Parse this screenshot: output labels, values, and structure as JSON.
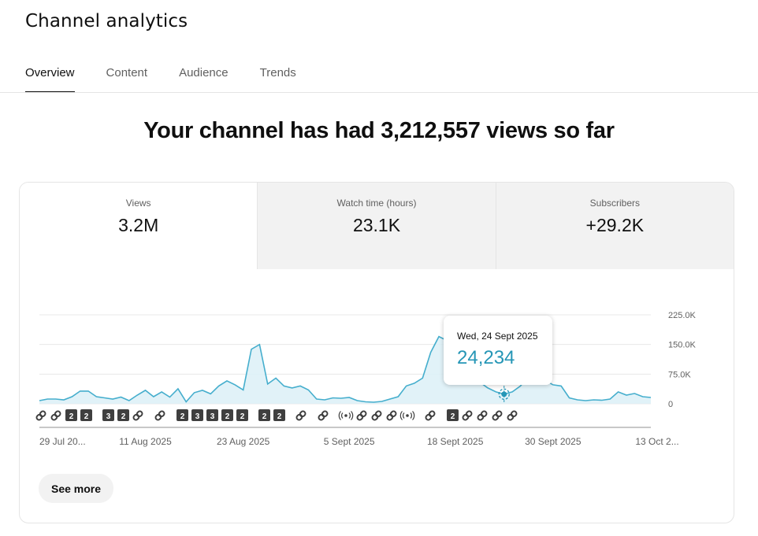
{
  "header": {
    "title": "Channel analytics"
  },
  "tabs": [
    {
      "label": "Overview",
      "active": true
    },
    {
      "label": "Content",
      "active": false
    },
    {
      "label": "Audience",
      "active": false
    },
    {
      "label": "Trends",
      "active": false
    }
  ],
  "headline": "Your channel has had 3,212,557 views so far",
  "metrics": [
    {
      "label": "Views",
      "value": "3.2M",
      "active": true
    },
    {
      "label": "Watch time (hours)",
      "value": "23.1K",
      "active": false
    },
    {
      "label": "Subscribers",
      "value": "+29.2K",
      "active": false
    }
  ],
  "tooltip": {
    "date": "Wed, 24 Sept 2025",
    "value": "24,234"
  },
  "see_more_label": "See more",
  "colors": {
    "line": "#45aecd",
    "fill": "#dcf0f7",
    "accent": "#2596b6"
  },
  "chart_data": {
    "type": "area",
    "y_ticks": [
      "225.0K",
      "150.0K",
      "75.0K",
      "0"
    ],
    "y_tick_values": [
      225000,
      150000,
      75000,
      0
    ],
    "ylim": [
      0,
      225000
    ],
    "x_labels": [
      "29 Jul 20...",
      "11 Aug 2025",
      "23 Aug 2025",
      "5 Sept 2025",
      "18 Sept 2025",
      "30 Sept 2025",
      "13 Oct 2..."
    ],
    "x_label_day_index": [
      0,
      13,
      25,
      38,
      51,
      63,
      76
    ],
    "values": [
      8000,
      12000,
      12000,
      10000,
      18000,
      32000,
      32000,
      18000,
      15000,
      12000,
      17000,
      8000,
      22000,
      34000,
      18000,
      30000,
      17000,
      38000,
      5000,
      28000,
      34000,
      25000,
      45000,
      58000,
      48000,
      35000,
      138000,
      150000,
      50000,
      65000,
      45000,
      40000,
      45000,
      35000,
      12000,
      10000,
      15000,
      14000,
      16000,
      8000,
      5000,
      4000,
      6000,
      12000,
      18000,
      45000,
      52000,
      65000,
      130000,
      170000,
      160000,
      130000,
      100000,
      75000,
      55000,
      40000,
      30000,
      24234,
      30000,
      45000,
      70000,
      100000,
      60000,
      48000,
      45000,
      15000,
      10000,
      8000,
      10000,
      9000,
      12000,
      30000,
      22000,
      26000,
      18000,
      16000
    ],
    "highlight_index": 57,
    "event_markers": [
      "link",
      "link",
      "num",
      "num",
      "spacer",
      "num",
      "num",
      "link",
      "spacer",
      "link",
      "spacer",
      "num",
      "num",
      "num",
      "num",
      "num",
      "spacer",
      "num",
      "num",
      "spacer",
      "link",
      "spacer",
      "link",
      "spacer",
      "live",
      "link",
      "link",
      "link",
      "live",
      "spacer",
      "link",
      "spacer",
      "num",
      "link",
      "link",
      "link",
      "link"
    ],
    "event_numbers": [
      "2",
      "2",
      "3",
      "2",
      "2",
      "3",
      "3",
      "2",
      "2",
      "2",
      "2",
      "2",
      "2"
    ]
  }
}
